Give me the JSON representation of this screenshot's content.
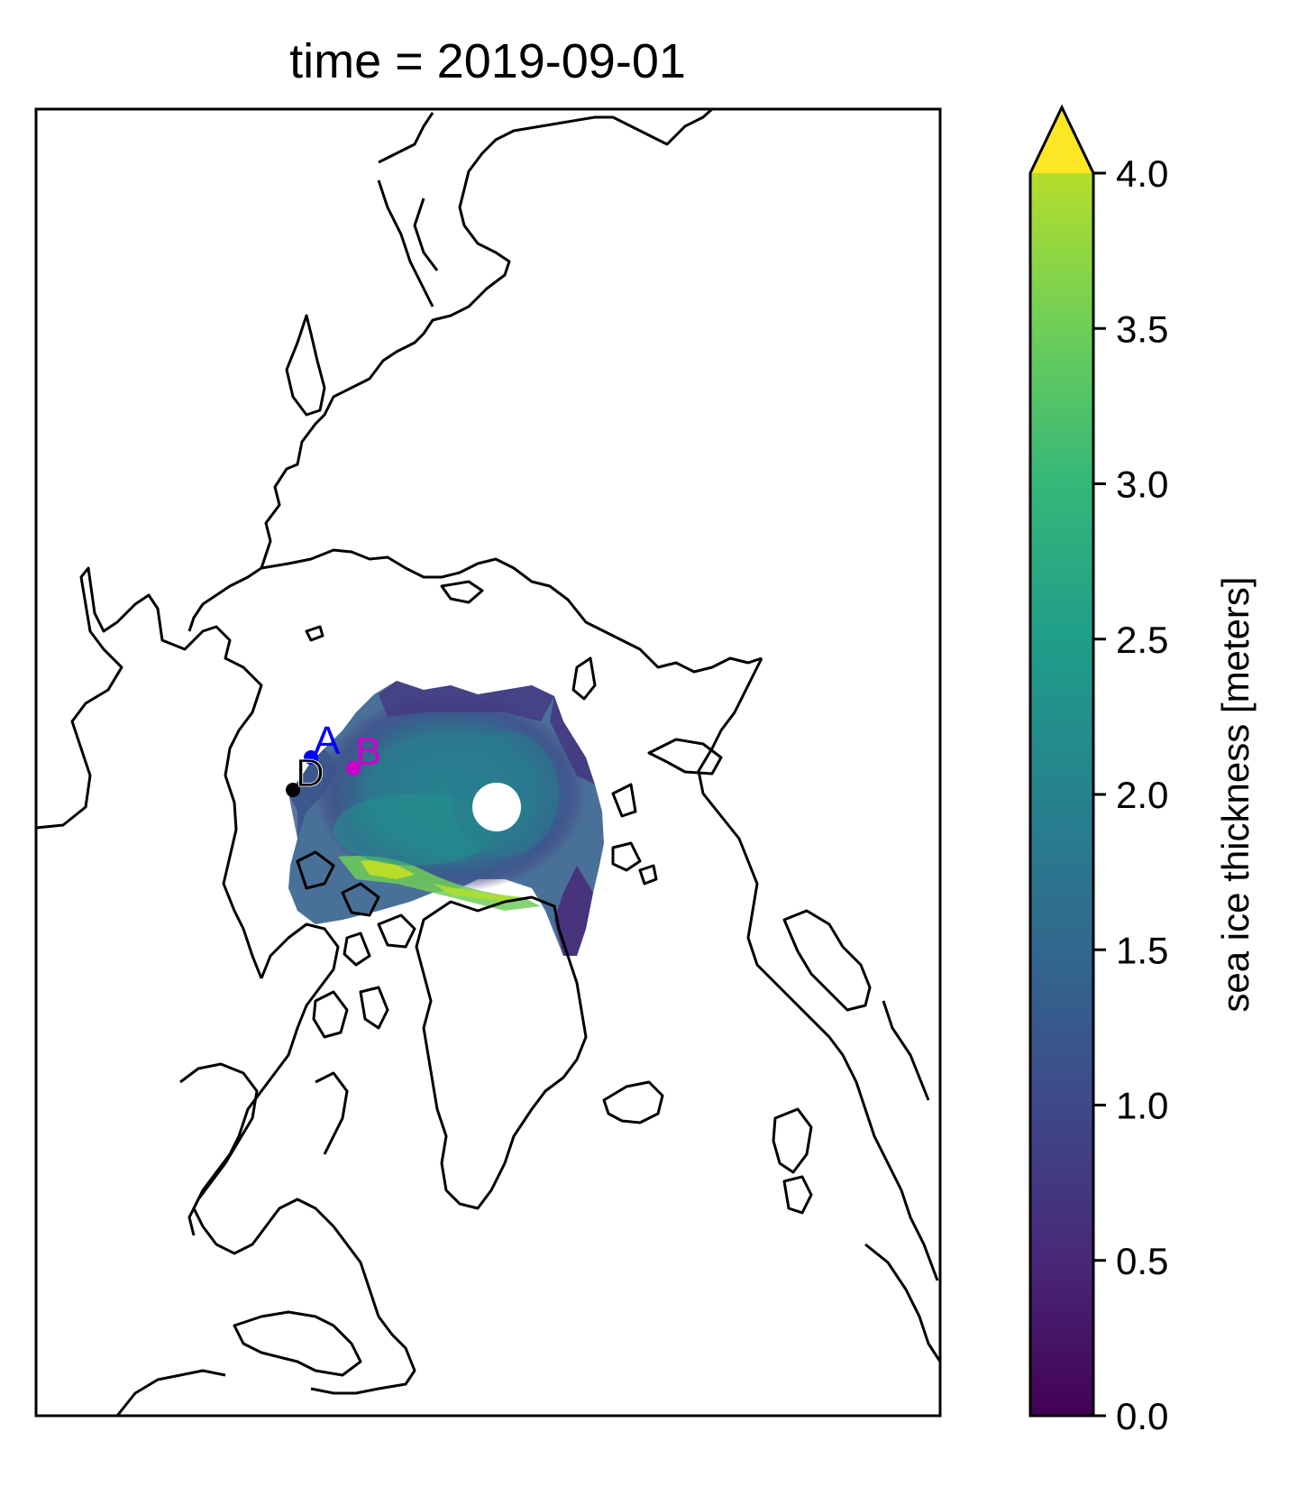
{
  "title": "time = 2019-09-01",
  "colorbar": {
    "label": "sea ice thickness [meters]",
    "min": 0.0,
    "max": 4.0,
    "extend": "max",
    "colormap": "viridis",
    "ticks": [
      "0.0",
      "0.5",
      "1.0",
      "1.5",
      "2.0",
      "2.5",
      "3.0",
      "3.5",
      "4.0"
    ],
    "tick_values": [
      0,
      0.5,
      1,
      1.5,
      2,
      2.5,
      3,
      3.5,
      4
    ]
  },
  "points": [
    {
      "label": "A",
      "color": "#0000ff"
    },
    {
      "label": "B",
      "color": "#cc00cc"
    },
    {
      "label": "D",
      "color": "#000000"
    }
  ],
  "chart_data": {
    "type": "heatmap",
    "title": "time = 2019-09-01",
    "colorbar_label": "sea ice thickness [meters]",
    "vmin": 0.0,
    "vmax": 4.0,
    "colormap": "viridis",
    "projection": "north polar stereographic",
    "coastlines": true,
    "pole_hole": true,
    "markers": [
      "A",
      "B",
      "D"
    ]
  }
}
